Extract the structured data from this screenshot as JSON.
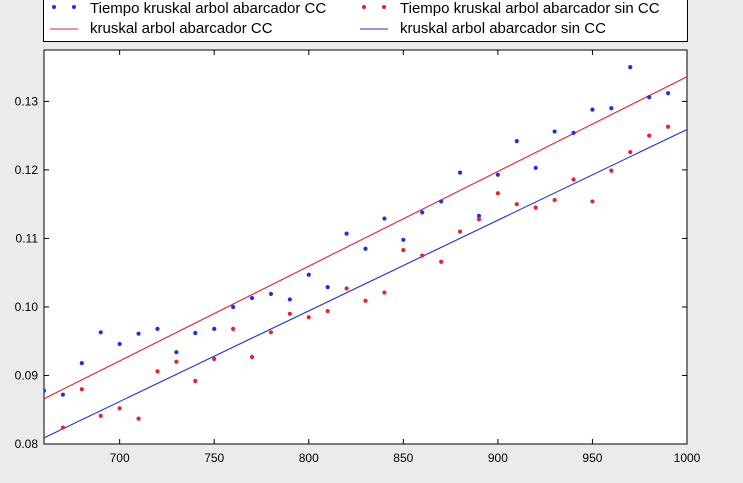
{
  "legend": {
    "entries": [
      {
        "label": "Tiempo kruskal arbol abarcador CC",
        "kind": "points",
        "color": "#1f2ee8"
      },
      {
        "label": "Tiempo kruskal arbol abarcador sin CC",
        "kind": "points",
        "color": "#e8202f"
      },
      {
        "label": "kruskal arbol abarcador CC",
        "kind": "line",
        "color": "#e8202f"
      },
      {
        "label": "kruskal arbol abarcador sin CC",
        "kind": "line",
        "color": "#1f2ee8"
      }
    ]
  },
  "chart_data": {
    "type": "scatter",
    "title": "",
    "xlabel": "",
    "ylabel": "",
    "xlim": [
      660,
      1000
    ],
    "ylim": [
      0.08,
      0.1375
    ],
    "x_ticks": [
      "700",
      "750",
      "800",
      "850",
      "900",
      "950",
      "1000"
    ],
    "y_ticks": [
      "0.08",
      "0.09",
      "0.10",
      "0.11",
      "0.12",
      "0.13"
    ],
    "grid": false,
    "legend_position": "top",
    "series": [
      {
        "name": "Tiempo kruskal arbol abarcador CC",
        "type": "scatter",
        "color": "#1f2ee8",
        "x": [
          660,
          670,
          680,
          690,
          700,
          710,
          720,
          730,
          740,
          750,
          760,
          770,
          780,
          790,
          800,
          810,
          820,
          830,
          840,
          850,
          860,
          870,
          880,
          890,
          900,
          910,
          920,
          930,
          940,
          950,
          960,
          970,
          980,
          990
        ],
        "y": [
          0.0878,
          0.0872,
          0.0918,
          0.0963,
          0.0946,
          0.0961,
          0.0968,
          0.0934,
          0.0962,
          0.0968,
          0.1,
          0.1013,
          0.1019,
          0.1011,
          0.1047,
          0.1029,
          0.1107,
          0.1085,
          0.1129,
          0.1098,
          0.1138,
          0.1154,
          0.1196,
          0.1133,
          0.1193,
          0.1242,
          0.1203,
          0.1256,
          0.1254,
          0.1288,
          0.129,
          0.135,
          0.1306,
          0.1312
        ]
      },
      {
        "name": "Tiempo kruskal arbol abarcador sin CC",
        "type": "scatter",
        "color": "#e8202f",
        "x": [
          670,
          680,
          690,
          700,
          710,
          720,
          730,
          740,
          750,
          760,
          770,
          780,
          790,
          800,
          810,
          820,
          830,
          840,
          850,
          860,
          870,
          880,
          890,
          900,
          910,
          920,
          930,
          940,
          950,
          960,
          970,
          980,
          990
        ],
        "y": [
          0.0824,
          0.088,
          0.0841,
          0.0852,
          0.0837,
          0.0906,
          0.092,
          0.0892,
          0.0924,
          0.0968,
          0.0927,
          0.0963,
          0.099,
          0.0985,
          0.0994,
          0.1027,
          0.1009,
          0.1021,
          0.1083,
          0.1075,
          0.1066,
          0.111,
          0.1128,
          0.1166,
          0.115,
          0.1145,
          0.1156,
          0.1186,
          0.1154,
          0.1199,
          0.1226,
          0.125,
          0.1263
        ]
      },
      {
        "name": "kruskal arbol abarcador CC",
        "type": "line",
        "color": "#e8202f",
        "x": [
          660,
          1000
        ],
        "y": [
          0.0866,
          0.1336
        ]
      },
      {
        "name": "kruskal arbol abarcador sin CC",
        "type": "line",
        "color": "#1f2ee8",
        "x": [
          660,
          1000
        ],
        "y": [
          0.0809,
          0.1259
        ]
      }
    ]
  }
}
